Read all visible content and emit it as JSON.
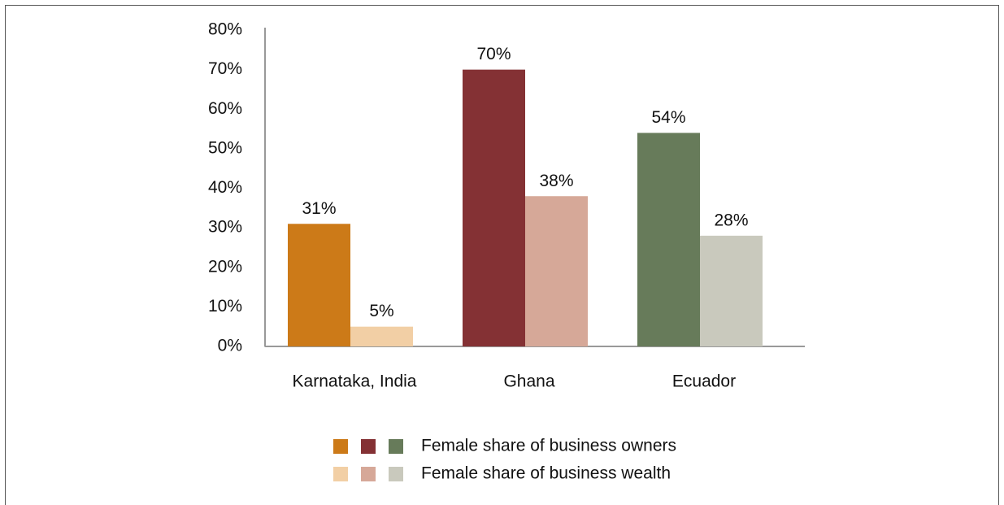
{
  "chart_data": {
    "type": "bar",
    "categories": [
      "Karnataka, India",
      "Ghana",
      "Ecuador"
    ],
    "series": [
      {
        "name": "Female share of business owners",
        "colors": [
          "#cc7a18",
          "#843134",
          "#677b5a"
        ],
        "values": [
          31,
          70,
          54
        ],
        "value_labels": [
          "31%",
          "70%",
          "54%"
        ]
      },
      {
        "name": "Female share of business wealth",
        "colors": [
          "#f2cfa5",
          "#d6a898",
          "#c9c9bd"
        ],
        "values": [
          5,
          38,
          28
        ],
        "value_labels": [
          "5%",
          "38%",
          "28%"
        ]
      }
    ],
    "ylim": [
      0,
      80
    ],
    "yticks": [
      {
        "value": 0,
        "label": "0%"
      },
      {
        "value": 10,
        "label": "10%"
      },
      {
        "value": 20,
        "label": "20%"
      },
      {
        "value": 30,
        "label": "30%"
      },
      {
        "value": 40,
        "label": "40%"
      },
      {
        "value": 50,
        "label": "50%"
      },
      {
        "value": 60,
        "label": "60%"
      },
      {
        "value": 70,
        "label": "70%"
      },
      {
        "value": 80,
        "label": "80%"
      }
    ],
    "grid": false,
    "legend": "bottom"
  }
}
